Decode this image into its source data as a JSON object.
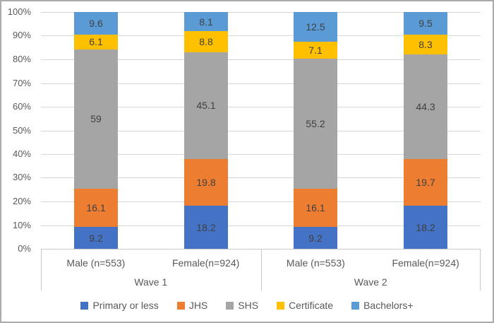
{
  "chart_data": {
    "type": "bar",
    "subtype": "100-percent-stacked-column",
    "title": "",
    "xlabel": "",
    "ylabel": "",
    "grid": true,
    "legend_position": "bottom",
    "y_axis": {
      "min": 0,
      "max": 100,
      "tick_step": 10,
      "tick_labels": [
        "0%",
        "10%",
        "20%",
        "30%",
        "40%",
        "50%",
        "60%",
        "70%",
        "80%",
        "90%",
        "100%"
      ]
    },
    "groups": [
      {
        "label": "Wave 1",
        "categories": [
          "Male (n=553)",
          "Female(n=924)"
        ]
      },
      {
        "label": "Wave 2",
        "categories": [
          "Male (n=553)",
          "Female(n=924)"
        ]
      }
    ],
    "series": [
      {
        "name": "Primary or less",
        "color": "#4472c4",
        "values": [
          9.2,
          18.2,
          9.2,
          18.2
        ]
      },
      {
        "name": "JHS",
        "color": "#ed7d31",
        "values": [
          16.1,
          19.8,
          16.1,
          19.7
        ]
      },
      {
        "name": "SHS",
        "color": "#a5a5a5",
        "values": [
          59,
          45.1,
          55.2,
          44.3
        ]
      },
      {
        "name": "Certificate",
        "color": "#ffc000",
        "values": [
          6.1,
          8.8,
          7.1,
          8.3
        ]
      },
      {
        "name": "Bachelors+",
        "color": "#5b9bd5",
        "values": [
          9.6,
          8.1,
          12.5,
          9.5
        ]
      }
    ],
    "style_colors": {
      "data_label": "#404040",
      "axis_text": "#595959",
      "gridline": "#d6d6d6",
      "axis_line": "#c9c9c9",
      "figure_border": "#ababab"
    }
  }
}
